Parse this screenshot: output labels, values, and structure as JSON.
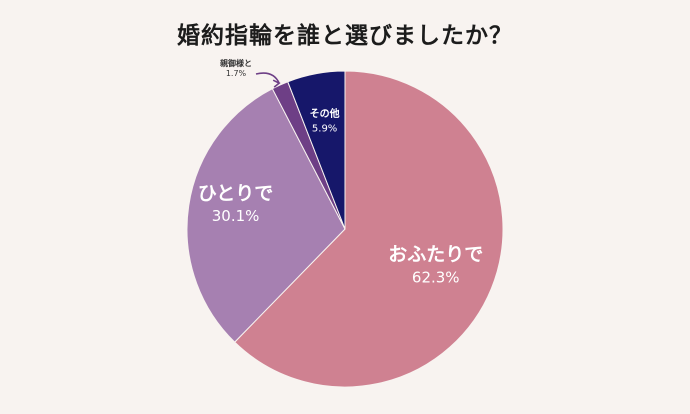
{
  "chart_data": {
    "type": "pie",
    "title": "婚約指輪を誰と選びましたか？",
    "slices": [
      {
        "label": "おふたりで",
        "value": 62.3,
        "value_label": "62.3%",
        "color": "#cf8191"
      },
      {
        "label": "ひとりで",
        "value": 30.1,
        "value_label": "30.1%",
        "color": "#a680b1"
      },
      {
        "label": "親御様と",
        "value": 1.7,
        "value_label": "1.7%",
        "color": "#6e3f86"
      },
      {
        "label": "その他",
        "value": 5.9,
        "value_label": "5.9%",
        "color": "#16176a"
      }
    ],
    "start": "top",
    "direction": "clockwise",
    "legend": "none"
  }
}
